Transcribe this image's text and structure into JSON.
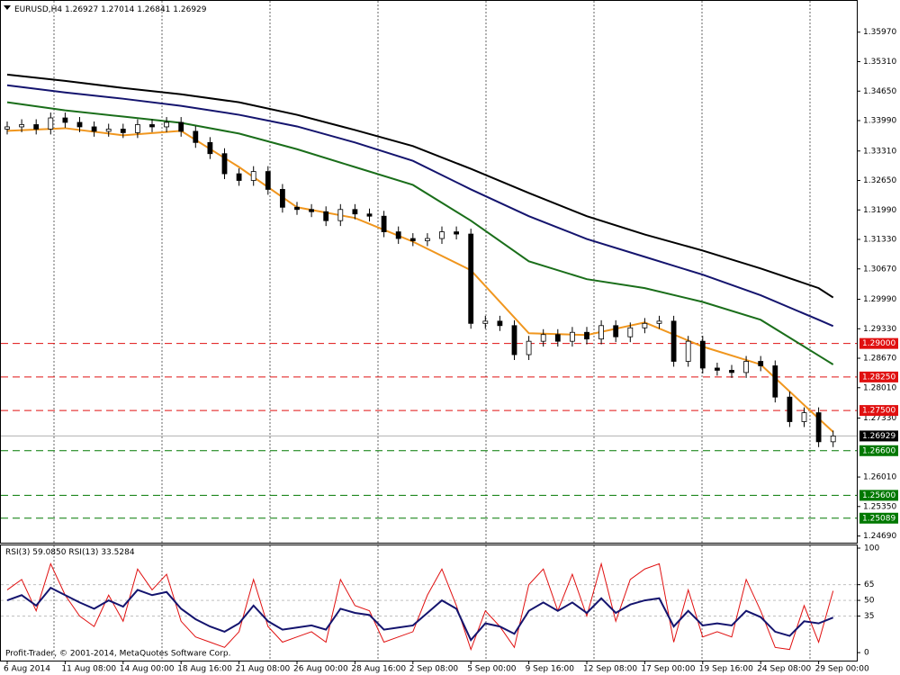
{
  "chart_data": {
    "type": "candlestick",
    "symbol": "EURUSD,H4",
    "quote": [
      1.26927,
      1.27014,
      1.26841,
      1.26929
    ],
    "categories": [
      "6 Aug 2014",
      null,
      null,
      null,
      "11 Aug 08:00",
      null,
      null,
      null,
      "14 Aug 00:00",
      null,
      null,
      null,
      "18 Aug 16:00",
      null,
      null,
      null,
      "21 Aug 08:00",
      null,
      null,
      null,
      "26 Aug 00:00",
      null,
      null,
      null,
      "28 Aug 16:00",
      null,
      null,
      null,
      "2 Sep 08:00",
      null,
      null,
      null,
      "5 Sep 00:00",
      null,
      null,
      null,
      "9 Sep 16:00",
      null,
      null,
      null,
      "12 Sep 08:00",
      null,
      null,
      null,
      "17 Sep 00:00",
      null,
      null,
      null,
      "19 Sep 16:00",
      null,
      null,
      null,
      "24 Sep 08:00",
      null,
      null,
      null,
      "29 Sep 00:00",
      null
    ],
    "open": [
      1.338,
      1.3385,
      1.339,
      1.338,
      1.3405,
      1.3395,
      1.3385,
      1.3375,
      1.338,
      1.3372,
      1.339,
      1.3385,
      1.3395,
      1.3375,
      1.335,
      1.3325,
      1.328,
      1.3265,
      1.3285,
      1.3245,
      1.3205,
      1.32,
      1.3195,
      1.3175,
      1.32,
      1.319,
      1.3185,
      1.315,
      1.3135,
      1.313,
      1.3135,
      1.315,
      1.3145,
      1.2945,
      1.295,
      1.294,
      1.2875,
      1.2905,
      1.292,
      1.2905,
      1.2925,
      1.291,
      1.294,
      1.2915,
      1.2935,
      1.2945,
      1.295,
      1.286,
      1.2905,
      1.2845,
      1.284,
      1.2835,
      1.286,
      1.285,
      1.278,
      1.2725,
      1.2745,
      1.268
    ],
    "high": [
      1.3397,
      1.3402,
      1.3402,
      1.3417,
      1.3417,
      1.3407,
      1.3397,
      1.3392,
      1.3392,
      1.3402,
      1.3402,
      1.3407,
      1.3407,
      1.3387,
      1.3362,
      1.3337,
      1.3292,
      1.3297,
      1.3297,
      1.3257,
      1.3217,
      1.3212,
      1.3207,
      1.3212,
      1.3212,
      1.3202,
      1.3197,
      1.3162,
      1.3147,
      1.3147,
      1.3162,
      1.3162,
      1.3157,
      1.2962,
      1.2962,
      1.2952,
      1.2917,
      1.2932,
      1.2932,
      1.2937,
      1.2937,
      1.2952,
      1.2952,
      1.2947,
      1.2957,
      1.2962,
      1.2962,
      1.2917,
      1.2917,
      1.2857,
      1.2852,
      1.2872,
      1.2872,
      1.2862,
      1.2792,
      1.2757,
      1.2757,
      1.2705
    ],
    "low": [
      1.3368,
      1.3373,
      1.3368,
      1.3368,
      1.3383,
      1.3373,
      1.3363,
      1.3363,
      1.336,
      1.336,
      1.3373,
      1.3373,
      1.3363,
      1.3338,
      1.3313,
      1.3268,
      1.3253,
      1.3253,
      1.3233,
      1.3193,
      1.3188,
      1.3183,
      1.3163,
      1.3163,
      1.3178,
      1.3173,
      1.3138,
      1.3123,
      1.3118,
      1.3118,
      1.3123,
      1.3133,
      1.2933,
      1.2933,
      1.2928,
      1.2863,
      1.2863,
      1.2893,
      1.2893,
      1.2893,
      1.2898,
      1.2898,
      1.2903,
      1.2903,
      1.2923,
      1.2933,
      1.2848,
      1.2848,
      1.2833,
      1.2828,
      1.2823,
      1.2823,
      1.2838,
      1.2768,
      1.2713,
      1.2713,
      1.2668,
      1.2668
    ],
    "close": [
      1.3385,
      1.339,
      1.338,
      1.3405,
      1.3395,
      1.3385,
      1.3375,
      1.338,
      1.3372,
      1.339,
      1.3385,
      1.3395,
      1.3375,
      1.335,
      1.3325,
      1.328,
      1.3265,
      1.3285,
      1.3245,
      1.3205,
      1.32,
      1.3195,
      1.3175,
      1.32,
      1.319,
      1.3185,
      1.315,
      1.3135,
      1.313,
      1.3135,
      1.315,
      1.3145,
      1.2945,
      1.295,
      1.294,
      1.2875,
      1.2905,
      1.292,
      1.2905,
      1.2925,
      1.291,
      1.294,
      1.2915,
      1.2935,
      1.2945,
      1.295,
      1.286,
      1.2905,
      1.2845,
      1.284,
      1.2835,
      1.286,
      1.285,
      1.278,
      1.2725,
      1.2745,
      1.268,
      1.26929
    ],
    "ylim": [
      1.2454,
      1.3667
    ],
    "yticks": [
      {
        "value": 1.3597,
        "label": "1.35970"
      },
      {
        "value": 1.3531,
        "label": "1.35310"
      },
      {
        "value": 1.3465,
        "label": "1.34650"
      },
      {
        "value": 1.3399,
        "label": "1.33990"
      },
      {
        "value": 1.3331,
        "label": "1.33310"
      },
      {
        "value": 1.3265,
        "label": "1.32650"
      },
      {
        "value": 1.3199,
        "label": "1.31990"
      },
      {
        "value": 1.3133,
        "label": "1.31330"
      },
      {
        "value": 1.3067,
        "label": "1.30670"
      },
      {
        "value": 1.2999,
        "label": "1.29990"
      },
      {
        "value": 1.2933,
        "label": "1.29330"
      },
      {
        "value": 1.2867,
        "label": "1.28670"
      },
      {
        "value": 1.2801,
        "label": "1.28010"
      },
      {
        "value": 1.2733,
        "label": "1.27330"
      },
      {
        "value": 1.2601,
        "label": "1.26010"
      },
      {
        "value": 1.2535,
        "label": "1.25350"
      },
      {
        "value": 1.2469,
        "label": "1.24690"
      }
    ],
    "levels": [
      {
        "value": 1.29,
        "label": "1.29000",
        "color": "#e01010"
      },
      {
        "value": 1.2825,
        "label": "1.28250",
        "color": "#e01010"
      },
      {
        "value": 1.275,
        "label": "1.27500",
        "color": "#e01010"
      },
      {
        "value": 1.26929,
        "label": "1.26929",
        "color": "#000000"
      },
      {
        "value": 1.266,
        "label": "1.26600",
        "color": "#007800"
      },
      {
        "value": 1.256,
        "label": "1.25600",
        "color": "#007800"
      },
      {
        "value": 1.25089,
        "label": "1.25089",
        "color": "#007800"
      }
    ],
    "moving_averages": [
      {
        "color": "#000000",
        "x": [
          0,
          4,
          8,
          12,
          16,
          20,
          24,
          28,
          32,
          36,
          40,
          44,
          48,
          52,
          56,
          57
        ],
        "values": [
          1.3502,
          1.3488,
          1.3472,
          1.3458,
          1.344,
          1.3412,
          1.3378,
          1.3342,
          1.3291,
          1.3237,
          1.3185,
          1.3144,
          1.3108,
          1.3068,
          1.3024,
          1.3003
        ]
      },
      {
        "color": "#14146e",
        "x": [
          0,
          4,
          8,
          12,
          16,
          20,
          24,
          28,
          32,
          36,
          40,
          44,
          48,
          52,
          56,
          57
        ],
        "values": [
          1.3478,
          1.3462,
          1.3448,
          1.3432,
          1.3412,
          1.3386,
          1.335,
          1.3309,
          1.3245,
          1.3185,
          1.3134,
          1.3094,
          1.3054,
          1.3008,
          1.2953,
          1.2939
        ]
      },
      {
        "color": "#1a6e1a",
        "x": [
          0,
          4,
          8,
          12,
          16,
          20,
          24,
          28,
          32,
          36,
          40,
          44,
          48,
          52,
          56,
          57
        ],
        "values": [
          1.344,
          1.3422,
          1.3408,
          1.3394,
          1.337,
          1.3335,
          1.3295,
          1.3255,
          1.3175,
          1.3084,
          1.3044,
          1.3024,
          1.2993,
          1.2953,
          1.2873,
          1.2853
        ]
      },
      {
        "color": "#f0961e",
        "x": [
          0,
          4,
          8,
          12,
          16,
          20,
          24,
          28,
          32,
          36,
          40,
          44,
          48,
          52,
          56,
          57
        ],
        "values": [
          1.3376,
          1.3382,
          1.3366,
          1.3376,
          1.3295,
          1.3205,
          1.3181,
          1.3128,
          1.3064,
          1.2923,
          1.2919,
          1.2947,
          1.2893,
          1.2853,
          1.2732,
          1.2702
        ]
      }
    ],
    "rsi": {
      "ylim": [
        -8.5,
        102.6
      ],
      "yticks": [
        100,
        65,
        50,
        35,
        0
      ],
      "series": [
        {
          "name": "RSI(3)",
          "color": "#e01010",
          "last": {
            "value": 59.085,
            "label": "59.0850"
          },
          "values": [
            60,
            70,
            40,
            85,
            55,
            35,
            25,
            55,
            30,
            80,
            60,
            75,
            30,
            15,
            10,
            5,
            20,
            70,
            25,
            10,
            15,
            20,
            10,
            70,
            45,
            40,
            10,
            15,
            20,
            55,
            80,
            45,
            3,
            40,
            25,
            5,
            65,
            80,
            40,
            75,
            35,
            85,
            30,
            70,
            80,
            85,
            10,
            60,
            15,
            20,
            15,
            70,
            40,
            5,
            3,
            45,
            10,
            59.085
          ]
        },
        {
          "name": "RSI(13)",
          "color": "#14146e",
          "last": {
            "value": 33.5284,
            "label": "33.5284"
          },
          "values": [
            50,
            55,
            45,
            62,
            55,
            48,
            42,
            50,
            44,
            60,
            55,
            58,
            42,
            32,
            25,
            20,
            28,
            45,
            30,
            22,
            24,
            26,
            22,
            42,
            38,
            36,
            22,
            24,
            26,
            38,
            50,
            42,
            12,
            28,
            25,
            18,
            40,
            48,
            40,
            48,
            38,
            52,
            38,
            46,
            50,
            52,
            25,
            40,
            26,
            28,
            26,
            40,
            34,
            20,
            16,
            30,
            28,
            33.5284
          ]
        }
      ]
    },
    "watermark": "Profit-Trader, © 2001-2014, MetaQuotes Software Corp."
  }
}
